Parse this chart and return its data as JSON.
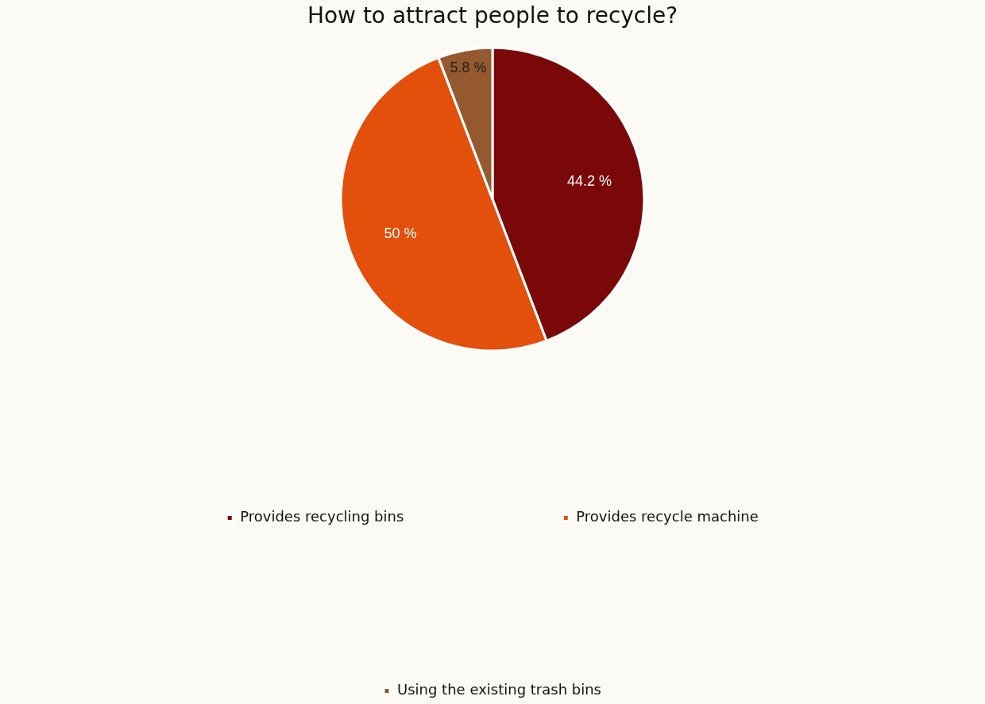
{
  "chart_data": {
    "type": "pie",
    "title": "How to attract people to recycle?",
    "categories": [
      "Provides recycling bins",
      "Provides recycle machine",
      "Using the existing trash bins"
    ],
    "values": [
      44.2,
      50,
      5.8
    ],
    "colors": [
      "#7a0808",
      "#e2500c",
      "#95592f"
    ],
    "value_labels": [
      "44.2 %",
      "50 %",
      "5.8 %"
    ],
    "legend": "bottom"
  }
}
